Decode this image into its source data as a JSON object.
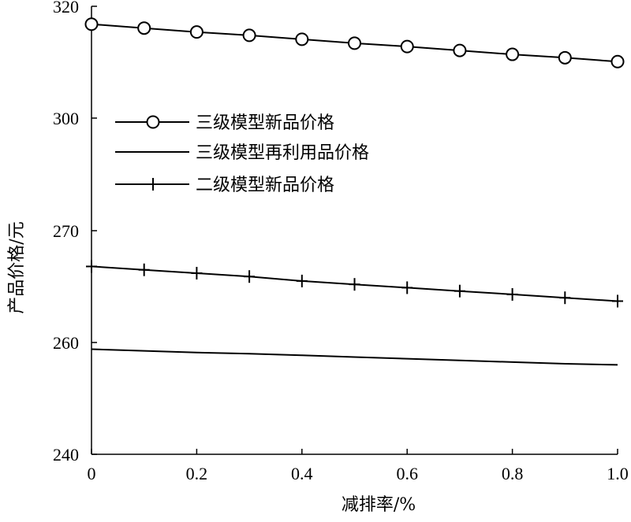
{
  "chart_data": {
    "type": "line",
    "xlabel": "减排率/%",
    "ylabel": "产品价格/元",
    "xlim": [
      0,
      1.0
    ],
    "ylim": [
      240,
      320
    ],
    "x_ticks": [
      "0",
      "0.2",
      "0.4",
      "0.6",
      "0.8",
      "1.0"
    ],
    "x_tick_values": [
      0,
      0.2,
      0.4,
      0.6,
      0.8,
      1.0
    ],
    "y_ticks": [
      "240",
      "260",
      "270",
      "300",
      "320"
    ],
    "y_tick_values": [
      240,
      260,
      270,
      300,
      320
    ],
    "x": [
      0,
      0.1,
      0.2,
      0.3,
      0.4,
      0.5,
      0.6,
      0.7,
      0.8,
      0.9,
      1.0
    ],
    "grid": false,
    "legend_position": "center-left",
    "series": [
      {
        "name": "三级模型新品价格",
        "marker": "circle",
        "color": "#000000",
        "values": [
          316.8,
          316.1,
          315.4,
          314.8,
          314.1,
          313.4,
          312.8,
          312.1,
          311.4,
          310.8,
          310.1
        ]
      },
      {
        "name": "三级模型再利用品价格",
        "marker": "none",
        "color": "#000000",
        "values": [
          258.8,
          258.5,
          258.2,
          258.0,
          257.7,
          257.4,
          257.1,
          256.8,
          256.5,
          256.2,
          256.0
        ]
      },
      {
        "name": "二级模型新品价格",
        "marker": "plus",
        "color": "#000000",
        "values": [
          266.8,
          266.5,
          266.2,
          265.9,
          265.5,
          265.2,
          264.9,
          264.6,
          264.3,
          264.0,
          263.7
        ]
      }
    ]
  }
}
